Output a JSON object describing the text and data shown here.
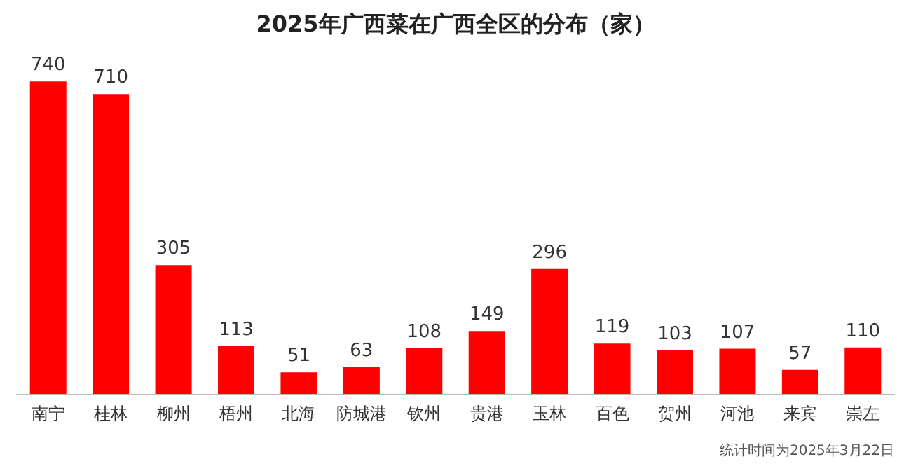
{
  "chart_data": {
    "type": "bar",
    "title": "2025年广西菜在广西全区的分布（家）",
    "categories": [
      "南宁",
      "桂林",
      "柳州",
      "梧州",
      "北海",
      "防城港",
      "钦州",
      "贵港",
      "玉林",
      "百色",
      "贺州",
      "河池",
      "来宾",
      "崇左"
    ],
    "values": [
      740,
      710,
      305,
      113,
      51,
      63,
      108,
      149,
      296,
      119,
      103,
      107,
      57,
      110
    ],
    "color": "#ff0000",
    "data_labels": true,
    "annotations": [
      "统计时间为2025年3月22日"
    ]
  }
}
